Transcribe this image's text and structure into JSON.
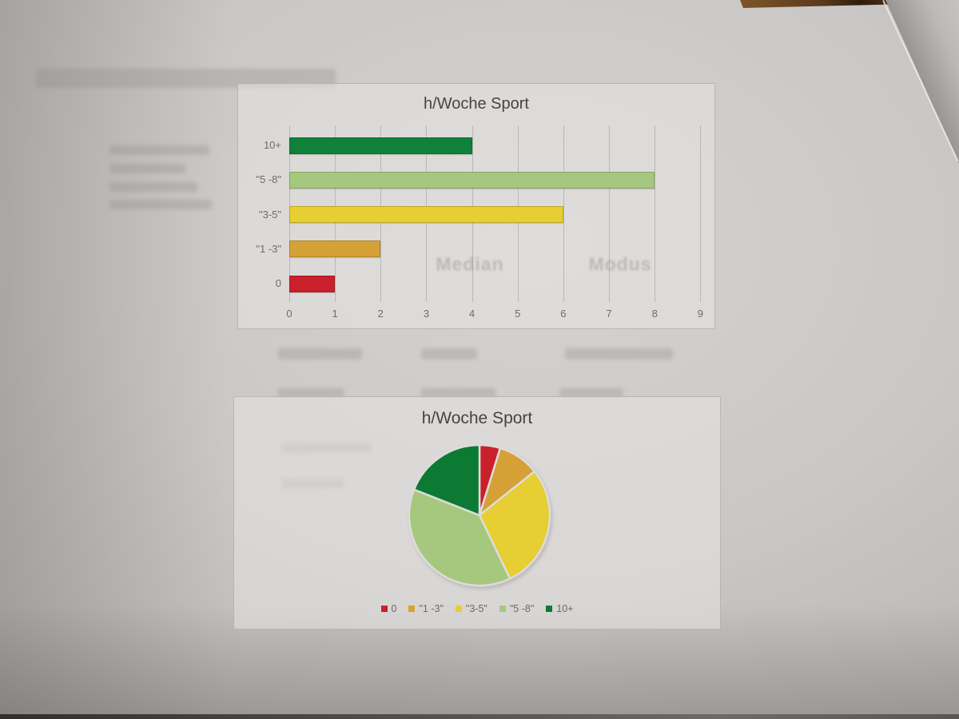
{
  "photo": {
    "paper_color": "#cac8c6",
    "table_color": "#5d3c1c",
    "overlapping_sheet_color": "#bcb9b7"
  },
  "ghost_text": {
    "left": "Median",
    "right": "Modus"
  },
  "chart_data": [
    {
      "type": "bar",
      "orientation": "horizontal",
      "title": "h/Woche Sport",
      "categories": [
        "10+",
        "\"5 -8\"",
        "\"3-5\"",
        "\"1 -3\"",
        "0"
      ],
      "values": [
        4,
        8,
        6,
        2,
        1
      ],
      "colors": [
        "#0F813B",
        "#A5C87E",
        "#E7CE32",
        "#D5A136",
        "#C9202B"
      ],
      "xlabel": "",
      "ylabel": "",
      "xlim": [
        0,
        9
      ],
      "x_ticks": [
        0,
        1,
        2,
        3,
        4,
        5,
        6,
        7,
        8,
        9
      ],
      "grid": true,
      "legend": false,
      "axis_text_color": "#6e6b69",
      "title_color": "#454443"
    },
    {
      "type": "pie",
      "title": "h/Woche Sport",
      "labels": [
        "0",
        "\"1 -3\"",
        "\"3-5\"",
        "\"5 -8\"",
        "10+"
      ],
      "values": [
        1,
        2,
        6,
        8,
        4
      ],
      "colors": [
        "#C9202B",
        "#D5A136",
        "#E7CE32",
        "#A5C87E",
        "#0C7A33"
      ],
      "start_angle_deg": 0,
      "direction": "clockwise",
      "legend_position": "bottom",
      "slice_gap_color": "#dedcda"
    }
  ]
}
